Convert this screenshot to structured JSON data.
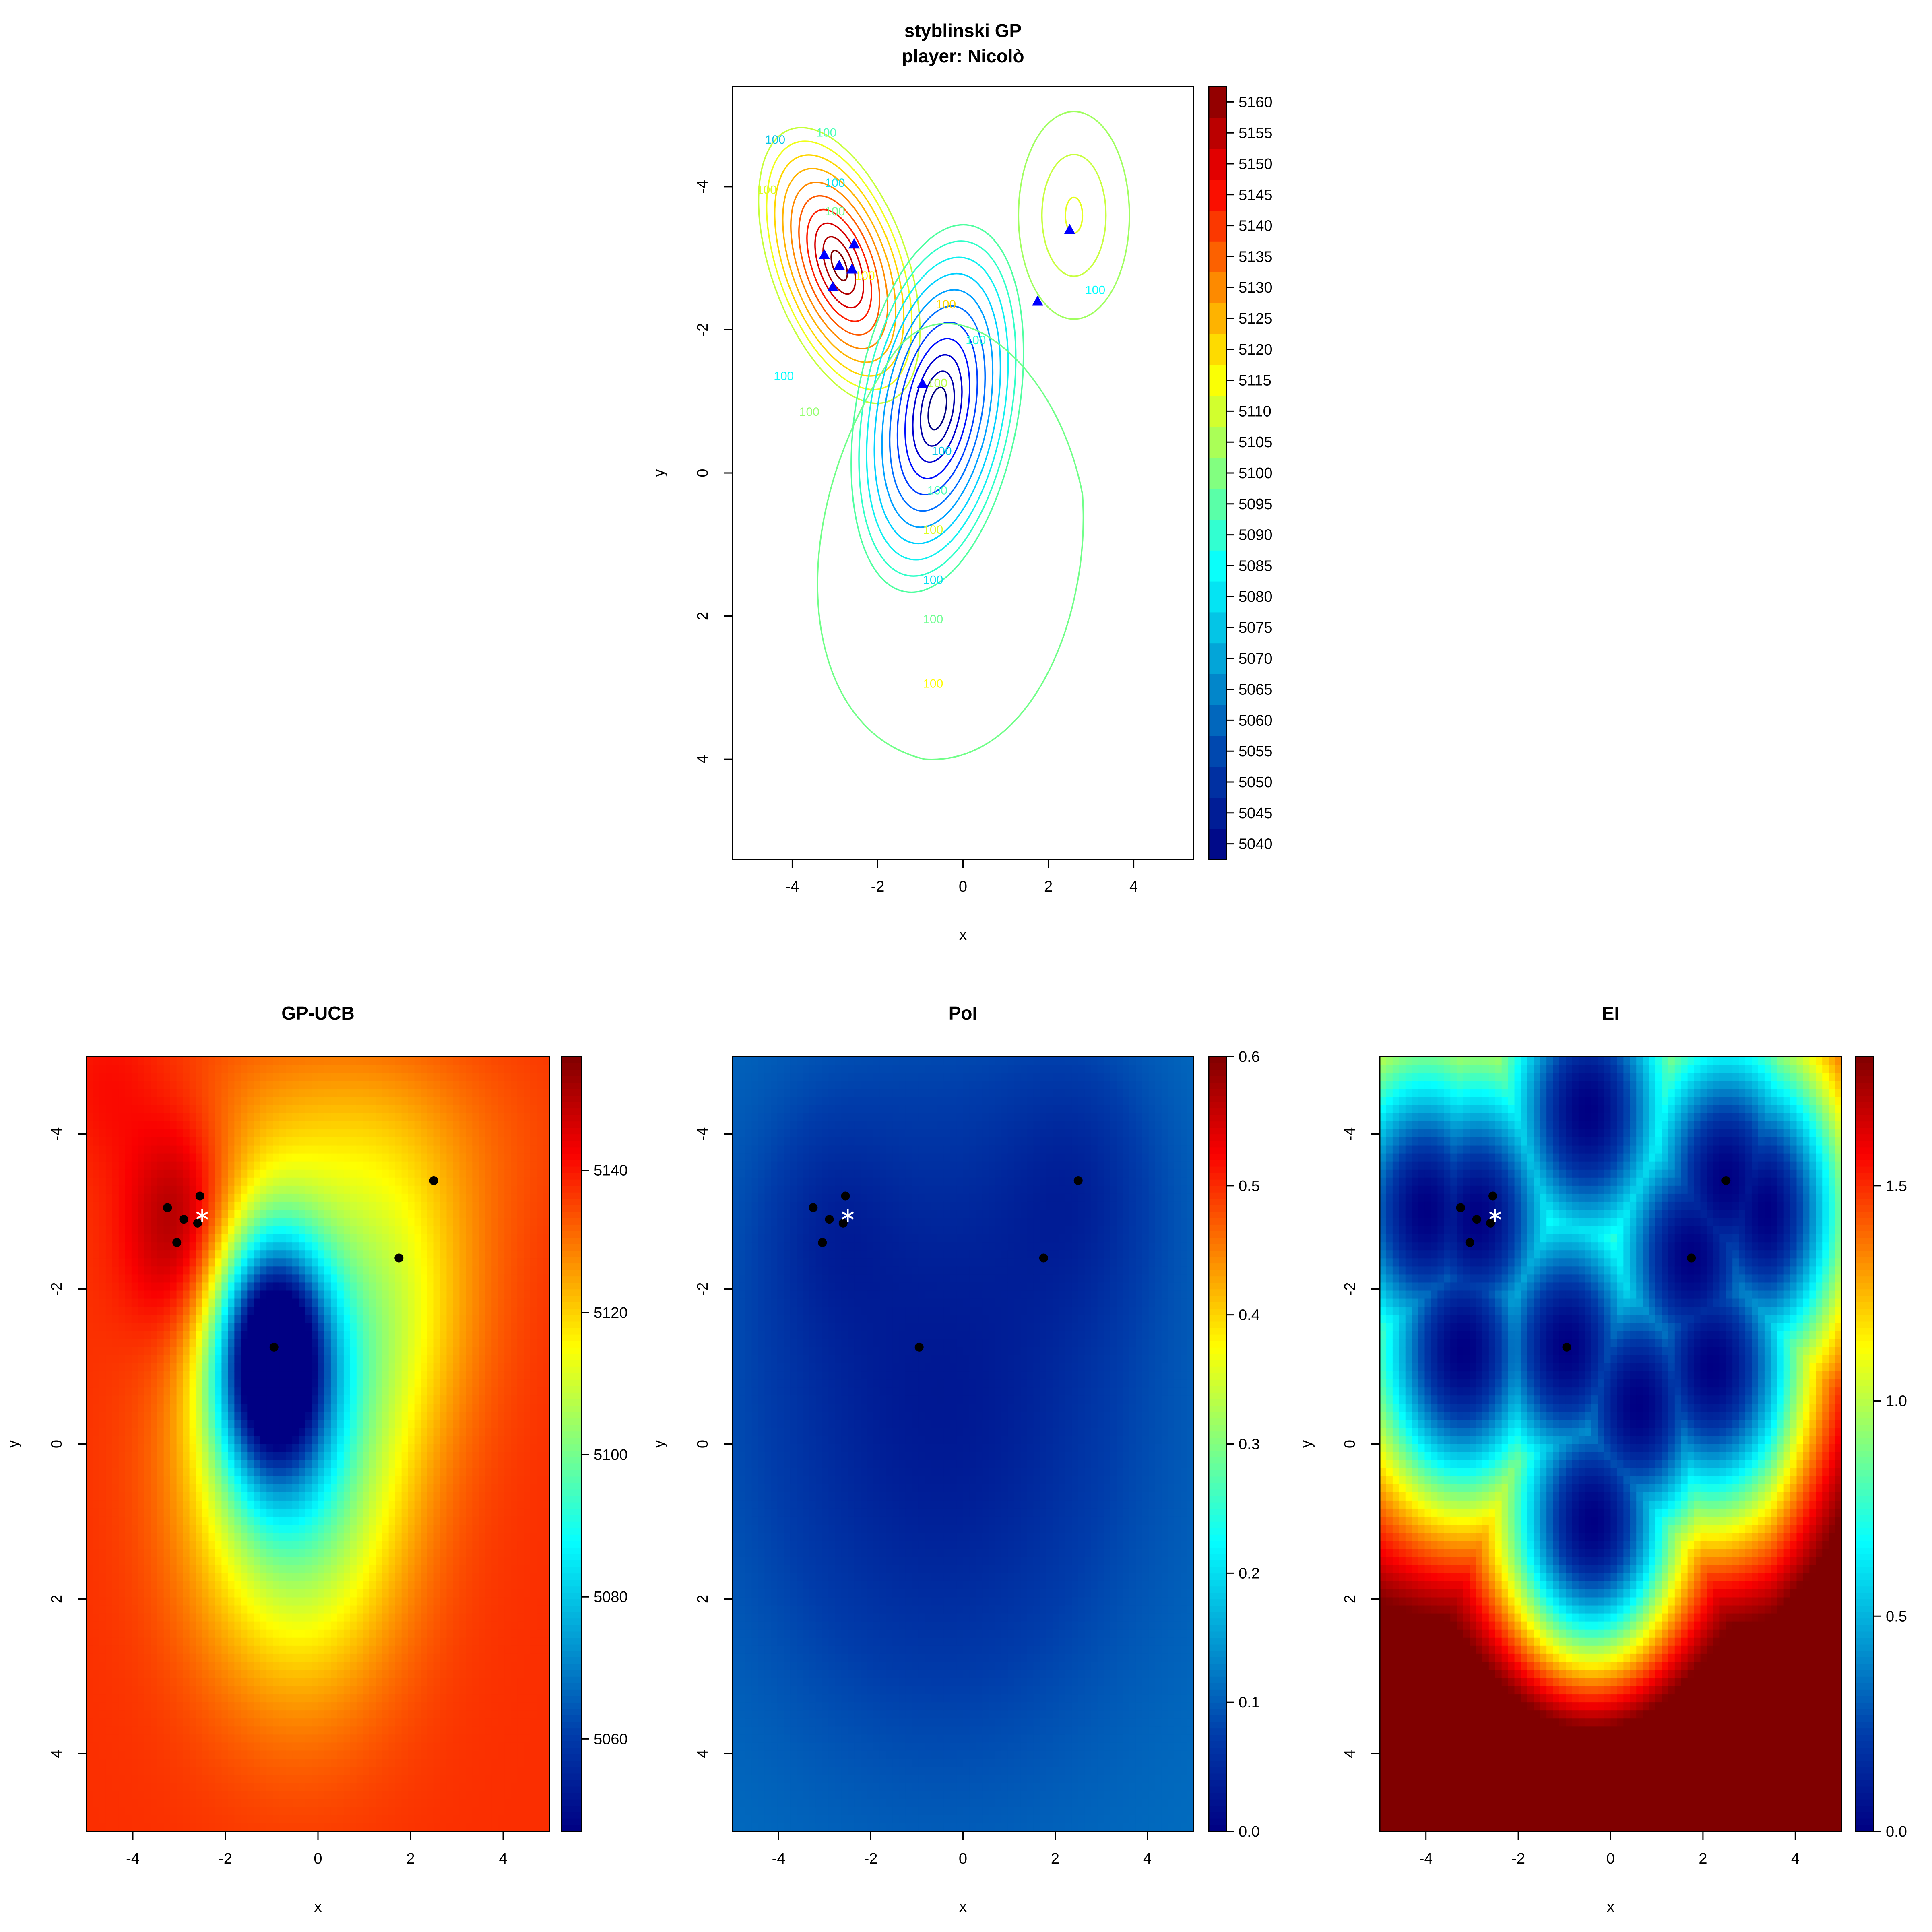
{
  "chart_data": [
    {
      "type": "contour",
      "title": "styblinski GP",
      "subtitle": "player: Nicolò",
      "xlabel": "x",
      "ylabel": "y",
      "xlim": [
        -5.4,
        5.4
      ],
      "ylim": [
        -5.4,
        5.4
      ],
      "y_reversed": true,
      "xticks": [
        -4,
        -2,
        0,
        2,
        4
      ],
      "yticks": [
        -4,
        -2,
        0,
        2,
        4
      ],
      "contour_labels": [
        "100",
        "100",
        "100",
        "100",
        "100",
        "100",
        "100",
        "100",
        "100",
        "100",
        "100",
        "100",
        "100",
        "100",
        "100",
        "100",
        "100",
        "100"
      ],
      "colorbar": {
        "min": 5037.5,
        "max": 5162.5,
        "ticks": [
          5040,
          5045,
          5050,
          5055,
          5060,
          5065,
          5070,
          5075,
          5080,
          5085,
          5090,
          5095,
          5100,
          5105,
          5110,
          5115,
          5120,
          5125,
          5130,
          5135,
          5140,
          5145,
          5150,
          5155,
          5160
        ]
      },
      "points": [
        {
          "x": -3.25,
          "y": -3.05
        },
        {
          "x": -2.9,
          "y": -2.9
        },
        {
          "x": -2.55,
          "y": -3.2
        },
        {
          "x": -2.6,
          "y": -2.85
        },
        {
          "x": -3.05,
          "y": -2.6
        },
        {
          "x": 2.5,
          "y": -3.4
        },
        {
          "x": 1.75,
          "y": -2.4
        },
        {
          "x": -0.95,
          "y": -1.25
        }
      ],
      "point_color": "#0000ff"
    },
    {
      "type": "heatmap",
      "title": "GP-UCB",
      "xlabel": "x",
      "ylabel": "y",
      "xlim": [
        -5,
        5
      ],
      "ylim": [
        -5,
        5
      ],
      "y_reversed": true,
      "xticks": [
        -4,
        -2,
        0,
        2,
        4
      ],
      "yticks": [
        -4,
        -2,
        0,
        2,
        4
      ],
      "colorbar": {
        "min": 5047,
        "max": 5156,
        "ticks": [
          5060,
          5080,
          5100,
          5120,
          5140
        ]
      },
      "points": [
        {
          "x": -3.25,
          "y": -3.05
        },
        {
          "x": -2.9,
          "y": -2.9
        },
        {
          "x": -2.55,
          "y": -3.2
        },
        {
          "x": -2.6,
          "y": -2.85
        },
        {
          "x": -3.05,
          "y": -2.6
        },
        {
          "x": 2.5,
          "y": -3.4
        },
        {
          "x": 1.75,
          "y": -2.4
        },
        {
          "x": -0.95,
          "y": -1.25
        }
      ],
      "next_point": {
        "x": -2.5,
        "y": -2.95
      }
    },
    {
      "type": "heatmap",
      "title": "PoI",
      "xlabel": "x",
      "ylabel": "y",
      "xlim": [
        -5,
        5
      ],
      "ylim": [
        -5,
        5
      ],
      "y_reversed": true,
      "xticks": [
        -4,
        -2,
        0,
        2,
        4
      ],
      "yticks": [
        -4,
        -2,
        0,
        2,
        4
      ],
      "colorbar": {
        "min": 0,
        "max": 0.6,
        "ticks": [
          "0.0",
          "0.1",
          "0.2",
          "0.3",
          "0.4",
          "0.5",
          "0.6"
        ]
      },
      "points": [
        {
          "x": -3.25,
          "y": -3.05
        },
        {
          "x": -2.9,
          "y": -2.9
        },
        {
          "x": -2.55,
          "y": -3.2
        },
        {
          "x": -2.6,
          "y": -2.85
        },
        {
          "x": -3.05,
          "y": -2.6
        },
        {
          "x": 2.5,
          "y": -3.4
        },
        {
          "x": 1.75,
          "y": -2.4
        },
        {
          "x": -0.95,
          "y": -1.25
        }
      ],
      "next_point": {
        "x": -2.5,
        "y": -2.95
      }
    },
    {
      "type": "heatmap",
      "title": "EI",
      "xlabel": "x",
      "ylabel": "y",
      "xlim": [
        -5,
        5
      ],
      "ylim": [
        -5,
        5
      ],
      "y_reversed": true,
      "xticks": [
        -4,
        -2,
        0,
        2,
        4
      ],
      "yticks": [
        -4,
        -2,
        0,
        2,
        4
      ],
      "colorbar": {
        "min": 0,
        "max": 1.8,
        "ticks": [
          "0.0",
          "0.5",
          "1.0",
          "1.5"
        ]
      },
      "points": [
        {
          "x": -3.25,
          "y": -3.05
        },
        {
          "x": -2.9,
          "y": -2.9
        },
        {
          "x": -2.55,
          "y": -3.2
        },
        {
          "x": -2.6,
          "y": -2.85
        },
        {
          "x": -3.05,
          "y": -2.6
        },
        {
          "x": 2.5,
          "y": -3.4
        },
        {
          "x": 1.75,
          "y": -2.4
        },
        {
          "x": -0.95,
          "y": -1.25
        }
      ],
      "next_point": {
        "x": -2.5,
        "y": -2.95
      }
    }
  ]
}
